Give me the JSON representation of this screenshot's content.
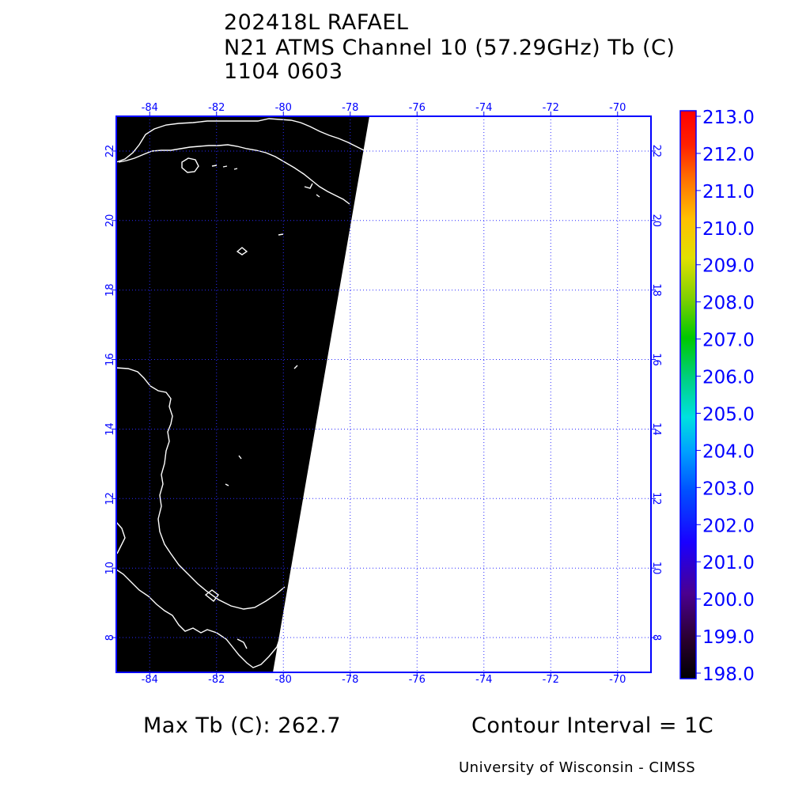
{
  "title": {
    "line1": "202418L RAFAEL",
    "line2": "N21 ATMS Channel 10 (57.29GHz) Tb (C)",
    "line3": "1104 0603"
  },
  "map": {
    "lon_range": [
      -85,
      -69
    ],
    "lat_range": [
      7,
      23
    ],
    "lon_ticks": [
      "-84",
      "-82",
      "-80",
      "-78",
      "-76",
      "-74",
      "-72",
      "-70"
    ],
    "lat_ticks": [
      "8",
      "10",
      "12",
      "14",
      "16",
      "18",
      "20",
      "22"
    ],
    "swath_color": "#000000",
    "coastline_color": "#ffffff",
    "grid_color": "#0000ff"
  },
  "colorbar": {
    "labels": [
      "213.0",
      "212.0",
      "211.0",
      "210.0",
      "209.0",
      "208.0",
      "207.0",
      "206.0",
      "205.0",
      "204.0",
      "203.0",
      "202.0",
      "201.0",
      "200.0",
      "199.0",
      "198.0"
    ],
    "label_color": "#0000ff"
  },
  "footer": {
    "max_tb": "Max Tb (C): 262.7",
    "contour": "Contour Interval = 1C",
    "credit": "University of Wisconsin - CIMSS"
  }
}
